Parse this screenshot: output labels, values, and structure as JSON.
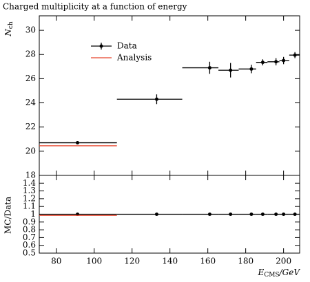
{
  "chart_data": {
    "type": "errorbar",
    "title": "Charged multiplicity at a function of energy",
    "ylabel": "N",
    "ylabel_sub": "ch",
    "xlabel": "E",
    "xlabel_sub": "CMS",
    "xlabel_unit": "/GeV",
    "ratio_ylabel": "MC/Data",
    "x": [
      91.2,
      133,
      161,
      172,
      183,
      189,
      196,
      200,
      206
    ],
    "xbins": [
      71,
      112,
      146.5,
      165.6,
      176.3,
      185.5,
      191.5,
      197.8,
      203,
      208.5
    ],
    "series": [
      {
        "name": "Data",
        "color": "#000000",
        "values": [
          20.7,
          24.3,
          26.9,
          26.7,
          26.8,
          27.35,
          27.4,
          27.5,
          27.95
        ],
        "errors": [
          0.1,
          0.4,
          0.5,
          0.6,
          0.35,
          0.25,
          0.3,
          0.3,
          0.25
        ],
        "ratio_values": [
          1,
          1,
          1,
          1,
          1,
          1,
          1,
          1,
          1
        ]
      },
      {
        "name": "Analysis",
        "color": "#e8452c",
        "values": [
          20.45,
          null,
          null,
          null,
          null,
          null,
          null,
          null,
          null
        ],
        "ratio_values": [
          0.985,
          null,
          null,
          null,
          null,
          null,
          null,
          null,
          null
        ]
      }
    ],
    "xlim": [
      71,
      208.5
    ],
    "xticks": [
      80,
      100,
      120,
      140,
      160,
      180,
      200
    ],
    "ylim": [
      18,
      31.2
    ],
    "yticks": [
      18,
      20,
      22,
      24,
      26,
      28,
      30
    ],
    "ratio_ylim": [
      0.5,
      1.5
    ],
    "ratio_yticks": [
      0.5,
      0.6,
      0.7,
      0.8,
      0.9,
      1,
      1.1,
      1.2,
      1.3,
      1.4
    ],
    "legend": "upper left"
  }
}
